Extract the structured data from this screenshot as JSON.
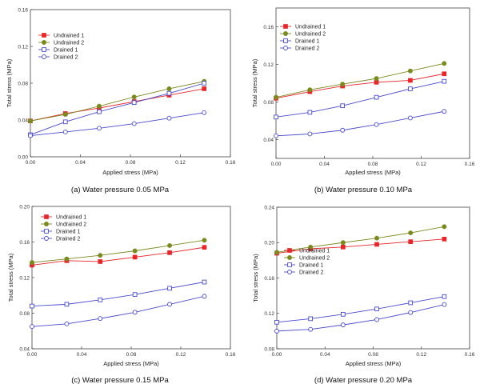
{
  "chart_data": [
    {
      "type": "line",
      "caption": "(a) Water pressure 0.05 MPa",
      "xlabel": "Applied stress (MPa)",
      "ylabel": "Total stress (MPa)",
      "xlim": [
        0,
        0.16
      ],
      "ylim": [
        0,
        0.16
      ],
      "xticks": [
        "0.00",
        "0.04",
        "0.08",
        "0.12",
        "0.16"
      ],
      "yticks": [
        "0.00",
        "0.04",
        "0.08",
        "0.12",
        "0.16"
      ],
      "legend_position": "top-left",
      "series": [
        {
          "name": "Undrained 1",
          "color": "#e8262a",
          "marker": "square-filled",
          "x": [
            0,
            0.028,
            0.055,
            0.083,
            0.111,
            0.139
          ],
          "y": [
            0.039,
            0.047,
            0.053,
            0.06,
            0.067,
            0.074
          ]
        },
        {
          "name": "Undrained 2",
          "color": "#7a8a1e",
          "marker": "circle-filled",
          "x": [
            0,
            0.028,
            0.055,
            0.083,
            0.111,
            0.139
          ],
          "y": [
            0.039,
            0.046,
            0.055,
            0.065,
            0.074,
            0.082
          ]
        },
        {
          "name": "Drained 1",
          "color": "#4a4ad0",
          "marker": "square-open",
          "x": [
            0,
            0.028,
            0.055,
            0.083,
            0.111,
            0.139
          ],
          "y": [
            0.024,
            0.038,
            0.049,
            0.059,
            0.069,
            0.08
          ]
        },
        {
          "name": "Drained 2",
          "color": "#4a4ad0",
          "marker": "circle-open",
          "x": [
            0,
            0.028,
            0.055,
            0.083,
            0.111,
            0.139
          ],
          "y": [
            0.023,
            0.027,
            0.031,
            0.036,
            0.042,
            0.048
          ]
        }
      ]
    },
    {
      "type": "line",
      "caption": "(b) Water pressure 0.10 MPa",
      "xlabel": "Applied stress (MPa)",
      "ylabel": "Total stress (MPa)",
      "xlim": [
        0,
        0.16
      ],
      "ylim": [
        0.02,
        0.18
      ],
      "xticks": [
        "0.00",
        "0.04",
        "0.08",
        "0.12",
        "0.16"
      ],
      "yticks": [
        "0.04",
        "0.08",
        "0.12",
        "0.16"
      ],
      "legend_position": "top-left",
      "series": [
        {
          "name": "Undrained 1",
          "color": "#e8262a",
          "marker": "square-filled",
          "x": [
            0,
            0.028,
            0.055,
            0.083,
            0.111,
            0.139
          ],
          "y": [
            0.084,
            0.091,
            0.097,
            0.101,
            0.103,
            0.11
          ]
        },
        {
          "name": "Undrained 2",
          "color": "#7a8a1e",
          "marker": "circle-filled",
          "x": [
            0,
            0.028,
            0.055,
            0.083,
            0.111,
            0.139
          ],
          "y": [
            0.085,
            0.093,
            0.099,
            0.105,
            0.113,
            0.121
          ]
        },
        {
          "name": "Drained 1",
          "color": "#4a4ad0",
          "marker": "square-open",
          "x": [
            0,
            0.028,
            0.055,
            0.083,
            0.111,
            0.139
          ],
          "y": [
            0.064,
            0.069,
            0.076,
            0.085,
            0.094,
            0.102
          ]
        },
        {
          "name": "Drained 2",
          "color": "#4a4ad0",
          "marker": "circle-open",
          "x": [
            0,
            0.028,
            0.055,
            0.083,
            0.111,
            0.139
          ],
          "y": [
            0.044,
            0.046,
            0.05,
            0.056,
            0.063,
            0.07
          ]
        }
      ]
    },
    {
      "type": "line",
      "caption": "(c) Water pressure 0.15 MPa",
      "xlabel": "Applied stress (MPa)",
      "ylabel": "Total stress (MPa)",
      "xlim": [
        0,
        0.16
      ],
      "ylim": [
        0.04,
        0.2
      ],
      "xticks": [
        "0.00",
        "0.04",
        "0.08",
        "0.12",
        "0.16"
      ],
      "yticks": [
        "0.04",
        "0.08",
        "0.12",
        "0.16",
        "0.20"
      ],
      "legend_position": "top-left",
      "series": [
        {
          "name": "Undrained 1",
          "color": "#e8262a",
          "marker": "square-filled",
          "x": [
            0,
            0.028,
            0.055,
            0.083,
            0.111,
            0.139
          ],
          "y": [
            0.134,
            0.139,
            0.138,
            0.143,
            0.148,
            0.154
          ]
        },
        {
          "name": "Undrained 2",
          "color": "#7a8a1e",
          "marker": "circle-filled",
          "x": [
            0,
            0.028,
            0.055,
            0.083,
            0.111,
            0.139
          ],
          "y": [
            0.137,
            0.141,
            0.145,
            0.15,
            0.156,
            0.162
          ]
        },
        {
          "name": "Drained 1",
          "color": "#4a4ad0",
          "marker": "square-open",
          "x": [
            0,
            0.028,
            0.055,
            0.083,
            0.111,
            0.139
          ],
          "y": [
            0.088,
            0.09,
            0.095,
            0.101,
            0.108,
            0.115
          ]
        },
        {
          "name": "Drained 2",
          "color": "#4a4ad0",
          "marker": "circle-open",
          "x": [
            0,
            0.028,
            0.055,
            0.083,
            0.111,
            0.139
          ],
          "y": [
            0.065,
            0.068,
            0.074,
            0.081,
            0.09,
            0.099
          ]
        }
      ]
    },
    {
      "type": "line",
      "caption": "(d) Water pressure 0.20 MPa",
      "xlabel": "Applied stress (MPa)",
      "ylabel": "Total stress (MPa)",
      "xlim": [
        0,
        0.16
      ],
      "ylim": [
        0.08,
        0.24
      ],
      "xticks": [
        "0.00",
        "0.04",
        "0.08",
        "0.12",
        "0.16"
      ],
      "yticks": [
        "0.08",
        "0.12",
        "0.16",
        "0.20",
        "0.24"
      ],
      "legend_position": "center-left",
      "series": [
        {
          "name": "Undrained 1",
          "color": "#e8262a",
          "marker": "square-filled",
          "x": [
            0,
            0.028,
            0.055,
            0.083,
            0.111,
            0.139
          ],
          "y": [
            0.188,
            0.193,
            0.195,
            0.198,
            0.201,
            0.204
          ]
        },
        {
          "name": "Undrained 2",
          "color": "#7a8a1e",
          "marker": "circle-filled",
          "x": [
            0,
            0.028,
            0.055,
            0.083,
            0.111,
            0.139
          ],
          "y": [
            0.189,
            0.195,
            0.2,
            0.205,
            0.211,
            0.218
          ]
        },
        {
          "name": "Drained 1",
          "color": "#4a4ad0",
          "marker": "square-open",
          "x": [
            0,
            0.028,
            0.055,
            0.083,
            0.111,
            0.139
          ],
          "y": [
            0.11,
            0.114,
            0.119,
            0.125,
            0.132,
            0.139
          ]
        },
        {
          "name": "Drained 2",
          "color": "#4a4ad0",
          "marker": "circle-open",
          "x": [
            0,
            0.028,
            0.055,
            0.083,
            0.111,
            0.139
          ],
          "y": [
            0.1,
            0.102,
            0.107,
            0.113,
            0.121,
            0.13
          ]
        }
      ]
    }
  ]
}
